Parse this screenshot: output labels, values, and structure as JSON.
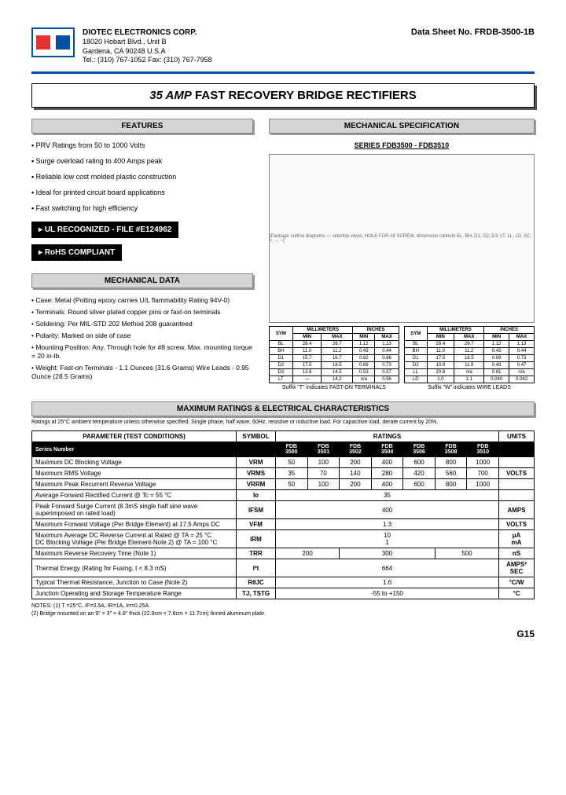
{
  "header": {
    "company": "DIOTEC ELECTRONICS CORP.",
    "addr1": "18020 Hobart Blvd., Unit B",
    "addr2": "Gardena, CA  90248   U.S.A",
    "tel": "Tel.: (310) 767-1052   Fax: (310) 767-7958",
    "datasheet_no": "Data Sheet No.  FRDB-3500-1B"
  },
  "title": {
    "amp": "35 AMP",
    "rest": "FAST RECOVERY  BRIDGE RECTIFIERS"
  },
  "features": {
    "header": "FEATURES",
    "items": [
      "PRV Ratings from 50 to 1000 Volts",
      "Surge overload rating to 400 Amps peak",
      "Reliable low cost molded plastic construction",
      "Ideal for printed circuit board applications",
      "Fast switching for high efficiency"
    ]
  },
  "badges": {
    "ul": "UL  RECOGNIZED - FILE #E124962",
    "rohs": "RoHS COMPLIANT"
  },
  "mech_data": {
    "header": "MECHANICAL DATA",
    "items": [
      "Case: Metal (Potting epoxy carries U/L flammability Rating 94V-0)",
      "Terminals: Round silver plated copper pins or fast-on terminals",
      "Soldering: Per MIL-STD 202 Method 208 guaranteed",
      "Polarity: Marked on side of case",
      "Mounting Position: Any.  Through hole for #8 screw. Max. mounting torque = 20 in-lb.",
      "Weight: Fast-on Terminals - 1.1 Ounces (31.6 Grams) Wire Leads - 0.95 Ounce (28.5 Grams)"
    ]
  },
  "mech_spec": {
    "header": "MECHANICAL  SPECIFICATION",
    "series": "SERIES FDB3500 - FDB3510",
    "diagram_note": "[Package outline diagrams — side/top views, HOLE FOR #8 SCREW, dimension callouts BL, BH, D1, D2, D3, LT, LL, LD, AC, +, −, ~]",
    "suffix_t": "Suffix \"T\" indicates FAST-ON TERMINALS",
    "suffix_w": "Suffix \"W\" indicates WIRE LEADS"
  },
  "dim_header": {
    "sym": "SYM",
    "mm": "MILLIMETERS",
    "in": "INCHES",
    "min": "MIN",
    "max": "MAX"
  },
  "dim_t": [
    {
      "s": "BL",
      "mmin": "28.4",
      "mmax": "28.7",
      "imin": "1.12",
      "imax": "1.13"
    },
    {
      "s": "BH",
      "mmin": "11.0",
      "mmax": "11.2",
      "imin": "0.43",
      "imax": "0.44"
    },
    {
      "s": "D1",
      "mmin": "15.7",
      "mmax": "16.7",
      "imin": "0.62",
      "imax": "0.66"
    },
    {
      "s": "D2",
      "mmin": "17.5",
      "mmax": "18.5",
      "imin": "0.69",
      "imax": "0.73"
    },
    {
      "s": "D3",
      "mmin": "13.6",
      "mmax": "14.5",
      "imin": "0.53",
      "imax": "0.57"
    },
    {
      "s": "LT",
      "mmin": "—",
      "mmax": "14.2",
      "imin": "n/a",
      "imax": "0.56"
    }
  ],
  "dim_w": [
    {
      "s": "BL",
      "mmin": "28.4",
      "mmax": "28.7",
      "imin": "1.12",
      "imax": "1.13"
    },
    {
      "s": "BH",
      "mmin": "11.0",
      "mmax": "11.2",
      "imin": "0.43",
      "imax": "0.44"
    },
    {
      "s": "D1",
      "mmin": "17.5",
      "mmax": "18.5",
      "imin": "0.69",
      "imax": "0.73"
    },
    {
      "s": "D2",
      "mmin": "10.9",
      "mmax": "11.9",
      "imin": "0.43",
      "imax": "0.47"
    },
    {
      "s": "LL",
      "mmin": "20.6",
      "mmax": "n/a",
      "imin": "0.81",
      "imax": "n/a"
    },
    {
      "s": "LD",
      "mmin": "1.0",
      "mmax": "1.1",
      "imin": "0.040",
      "imax": "0.042"
    }
  ],
  "ratings": {
    "header": "MAXIMUM RATINGS & ELECTRICAL CHARACTERISTICS",
    "subnote": "Ratings at 25°C ambient temperature unless otherwise specified. Single phase, half wave, 60Hz, resistive or inductive load. For capacitive load, derate current by 20%.",
    "col_param": "PARAMETER (TEST CONDITIONS)",
    "col_symbol": "SYMBOL",
    "col_ratings": "RATINGS",
    "col_units": "UNITS",
    "series_label": "Series Number",
    "series_cols": [
      "FDB 3500",
      "FDB 3501",
      "FDB 3502",
      "FDB 3504",
      "FDB 3506",
      "FDB 3508",
      "FDB 3510"
    ],
    "rows": [
      {
        "p": "Maximum DC Blocking Voltage",
        "s": "VRM",
        "v": [
          "50",
          "100",
          "200",
          "400",
          "600",
          "800",
          "1000"
        ],
        "u": ""
      },
      {
        "p": "Maximum RMS Voltage",
        "s": "VRMS",
        "v": [
          "35",
          "70",
          "140",
          "280",
          "420",
          "560",
          "700"
        ],
        "u": "VOLTS"
      },
      {
        "p": "Maximum Peak Recurrent Reverse Voltage",
        "s": "VRRM",
        "v": [
          "50",
          "100",
          "200",
          "400",
          "600",
          "800",
          "1000"
        ],
        "u": ""
      },
      {
        "p": "Average Forward Rectified Current @ Tc = 55 °C",
        "s": "Io",
        "span": "35",
        "u": ""
      },
      {
        "p": "Peak Forward Surge Current (8.3mS single half sine wave superimposed on rated load)",
        "s": "IFSM",
        "span": "400",
        "u": "AMPS"
      },
      {
        "p": "Maximum Forward Voltage (Per Bridge Element) at 17.5 Amps DC",
        "s": "VFM",
        "span": "1.3",
        "u": "VOLTS"
      },
      {
        "p": "Maximum Average DC Reverse Current at Rated        @ TA =  25 °C\nDC Blocking Voltage (Per Bridge Element-Note 2)   @ TA = 100 °C",
        "s": "IRM",
        "span": "10\n1",
        "u": "μA\nmA"
      },
      {
        "p": "Maximum Reverse Recovery Time  (Note 1)",
        "s": "TRR",
        "v3": [
          "200",
          "300",
          "500"
        ],
        "u": "nS"
      },
      {
        "p": "Thermal Energy (Rating for Fusing, t < 8.3 mS)",
        "s": "I²t",
        "span": "664",
        "u": "AMPS² SEC"
      },
      {
        "p": "Typical Thermal Resistance, Junction to Case  (Note 2)",
        "s": "RθJC",
        "span": "1.6",
        "u": "°C/W"
      },
      {
        "p": "Junction Operating and Storage Temperature Range",
        "s": "TJ, TSTG",
        "span": "-55 to +150",
        "u": "°C"
      }
    ]
  },
  "notes": "NOTES:  (1) T =25°C, IF=0.5A, IR=1A, Irr=0.25A\n              (2) Bridge mounted on an 9\" × 3\" × 4.8\" thick (22.9cm × 7.6cm × 11.7cm) finned aluminum plate.",
  "page_no": "G15"
}
